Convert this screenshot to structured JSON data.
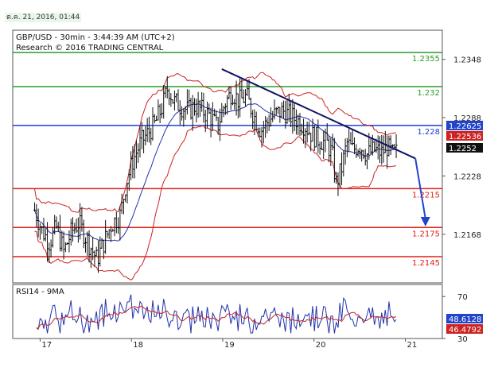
{
  "header": {
    "timestamp": "ต.ค. 21, 2016, 01:44"
  },
  "chart_data": {
    "type": "candlestick",
    "title": "GBP/USD - 30min - 3:44:39 AM (UTC+2)",
    "subtitle": "Research © 2016 TRADING CENTRAL",
    "ylim": [
      1.2118,
      1.2378
    ],
    "y_ticks": [
      "1.2348",
      "1.2288",
      "1.2228",
      "1.2168"
    ],
    "x_ticks": [
      "17",
      "18",
      "19",
      "20",
      "21"
    ],
    "colors": {
      "resistance": "#2a9d2a",
      "pivot": "#1f3fd6",
      "support": "#e0201a",
      "price": "#111111",
      "bollinger": "#cc2222",
      "moving_average": "#2233aa",
      "trendline": "#111166",
      "projection": "#2244cc",
      "price_box": "#111111",
      "upper_band_box": "#2244cc",
      "ma_box": "#cc2222"
    },
    "levels": [
      {
        "label": "1.2355",
        "value": 1.2355,
        "kind": "resistance"
      },
      {
        "label": "1.232",
        "value": 1.232,
        "kind": "resistance"
      },
      {
        "label": "1.228",
        "value": 1.228,
        "kind": "pivot"
      },
      {
        "label": "1.2215",
        "value": 1.2215,
        "kind": "support"
      },
      {
        "label": "1.2175",
        "value": 1.2175,
        "kind": "support"
      },
      {
        "label": "1.2145",
        "value": 1.2145,
        "kind": "support"
      }
    ],
    "value_boxes": [
      {
        "label": "1.22625",
        "value": 1.22625,
        "kind": "upper_band_box"
      },
      {
        "label": "1.22536",
        "value": 1.22536,
        "kind": "ma_box"
      },
      {
        "label": "1.2252",
        "value": 1.2252,
        "kind": "price_box"
      }
    ],
    "trendline": {
      "from": [
        11.45,
        1.2338
      ],
      "to": [
        22.05,
        1.2246
      ]
    },
    "projection": {
      "from": [
        22.05,
        1.2246
      ],
      "to": [
        22.6,
        1.2176
      ]
    },
    "price_anchors": [
      [
        1.2,
        1.2193
      ],
      [
        1.6,
        1.2172
      ],
      [
        2.0,
        1.216
      ],
      [
        2.4,
        1.2175
      ],
      [
        2.8,
        1.215
      ],
      [
        3.2,
        1.217
      ],
      [
        3.6,
        1.218
      ],
      [
        4.0,
        1.2165
      ],
      [
        4.4,
        1.215
      ],
      [
        4.6,
        1.2142
      ],
      [
        5.0,
        1.216
      ],
      [
        5.4,
        1.2178
      ],
      [
        5.9,
        1.2188
      ],
      [
        6.2,
        1.222
      ],
      [
        6.6,
        1.2245
      ],
      [
        7.0,
        1.2262
      ],
      [
        7.4,
        1.2272
      ],
      [
        7.8,
        1.2282
      ],
      [
        8.2,
        1.23
      ],
      [
        8.5,
        1.232
      ],
      [
        8.8,
        1.2305
      ],
      [
        9.2,
        1.23
      ],
      [
        9.6,
        1.2295
      ],
      [
        10.0,
        1.23
      ],
      [
        10.4,
        1.2295
      ],
      [
        10.8,
        1.229
      ],
      [
        11.2,
        1.2278
      ],
      [
        11.6,
        1.2302
      ],
      [
        12.0,
        1.2315
      ],
      [
        12.4,
        1.2305
      ],
      [
        12.8,
        1.231
      ],
      [
        13.2,
        1.229
      ],
      [
        13.6,
        1.2275
      ],
      [
        14.0,
        1.2285
      ],
      [
        14.4,
        1.2292
      ],
      [
        14.8,
        1.2295
      ],
      [
        15.2,
        1.229
      ],
      [
        15.6,
        1.2285
      ],
      [
        16.0,
        1.228
      ],
      [
        16.4,
        1.227
      ],
      [
        16.8,
        1.2265
      ],
      [
        17.2,
        1.2262
      ],
      [
        17.5,
        1.225
      ],
      [
        17.7,
        1.222
      ],
      [
        18.0,
        1.2235
      ],
      [
        18.3,
        1.2262
      ],
      [
        18.6,
        1.2255
      ],
      [
        19.0,
        1.226
      ],
      [
        19.4,
        1.225
      ],
      [
        19.8,
        1.2255
      ],
      [
        20.2,
        1.2252
      ],
      [
        20.5,
        1.2258
      ],
      [
        20.8,
        1.225
      ],
      [
        21.0,
        1.2252
      ]
    ],
    "rsi": {
      "label": "RSI14 - 9MA",
      "ylim": [
        30,
        80
      ],
      "y_ticks": [
        "70",
        "30"
      ],
      "value_boxes": [
        {
          "label": "48.6128",
          "value": 48.6128,
          "kind": "upper_band_box"
        },
        {
          "label": "46.4792",
          "value": 46.4792,
          "kind": "ma_box"
        }
      ]
    }
  }
}
